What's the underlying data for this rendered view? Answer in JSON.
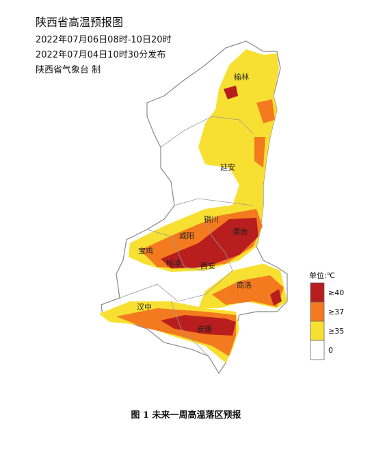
{
  "header": {
    "title": "陕西省高温预报图",
    "valid_period": "2022年07月06日08时-10日20时",
    "issued": "2022年07月04日10时30分发布",
    "issuer": "陕西省气象台 制"
  },
  "cities": [
    "榆林",
    "延安",
    "铜川",
    "宝鸡",
    "咸阳",
    "渭南",
    "杨凌",
    "西安",
    "商洛",
    "汉中",
    "安康"
  ],
  "legend": {
    "title": "单位:℃",
    "items": [
      {
        "label": "≥40",
        "color": "#b81e1e"
      },
      {
        "label": "≥37",
        "color": "#f47a1f"
      },
      {
        "label": "≥35",
        "color": "#f7e032"
      },
      {
        "label": "0",
        "color": "#ffffff"
      }
    ]
  },
  "caption": "图 1  未来一周高温落区预报"
}
